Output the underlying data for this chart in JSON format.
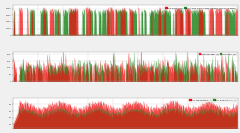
{
  "background_color": "#f0f0f0",
  "panel_bg": "#ffffff",
  "grid_color": "#cccccc",
  "red_color": "#ee1111",
  "green_color": "#228822",
  "n_points": 800,
  "seed": 7,
  "panel1_ylim": [
    0,
    4500
  ],
  "panel1_yticks": [
    0,
    1000,
    2000,
    3000,
    4000
  ],
  "panel2_ylim": [
    0,
    220
  ],
  "panel2_yticks": [
    0,
    50,
    100,
    150,
    200
  ],
  "panel3_ylim": [
    20,
    110
  ],
  "panel3_yticks": [
    30,
    50,
    70,
    90
  ],
  "legend1": [
    "Core Clock (MHz)",
    "Boost Core Clock to Max Available (GHz-4000 boost)"
  ],
  "legend2": [
    "Package Power (W)",
    "GPU Power (W)"
  ],
  "legend3": [
    "Core Temperature (°C)",
    "GPU Temperature (°C)"
  ]
}
